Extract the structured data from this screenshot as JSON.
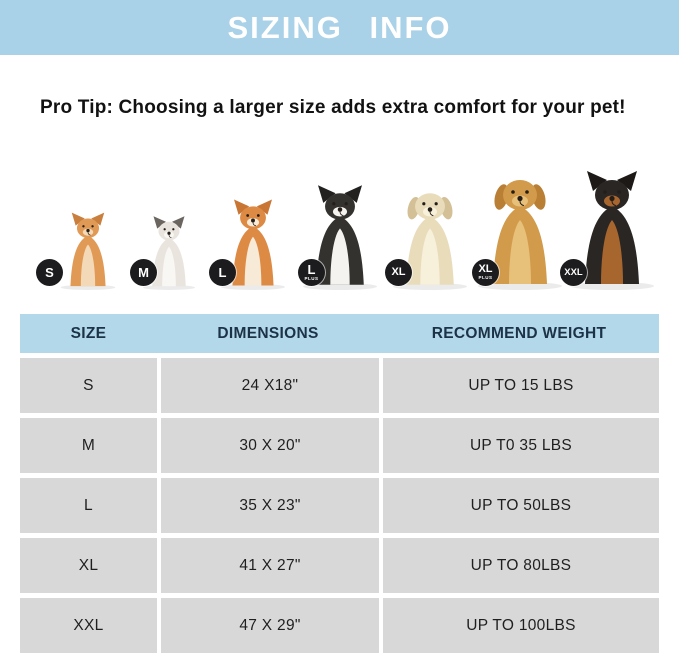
{
  "banner": {
    "title": "SIZING INFO",
    "bg_color": "#a9d1e7",
    "text_color": "#ffffff"
  },
  "pro_tip": "Pro Tip: Choosing a larger size adds extra comfort for your pet!",
  "dogs": [
    {
      "breed": "pomeranian",
      "badge": "S",
      "badge_sub": "",
      "body": "#e09a55",
      "accent": "#f3d9b8",
      "ear": "#c97f3e",
      "ears": "pointed"
    },
    {
      "breed": "french-bulldog",
      "badge": "M",
      "badge_sub": "",
      "body": "#e9e4dd",
      "accent": "#f9f7f3",
      "ear": "#6b6560",
      "ears": "pointed"
    },
    {
      "breed": "shiba-inu",
      "badge": "L",
      "badge_sub": "",
      "body": "#dd8a45",
      "accent": "#f7ead6",
      "ear": "#c97634",
      "ears": "pointed"
    },
    {
      "breed": "border-collie",
      "badge": "L",
      "badge_sub": "PLUS",
      "body": "#33322f",
      "accent": "#f5f3ef",
      "ear": "#222120",
      "ears": "pointed"
    },
    {
      "breed": "labrador",
      "badge": "XL",
      "badge_sub": "",
      "body": "#e9dcbb",
      "accent": "#f7f0da",
      "ear": "#d3c096",
      "ears": "floppy"
    },
    {
      "breed": "golden-retriever",
      "badge": "XL",
      "badge_sub": "PLUS",
      "body": "#d29a4b",
      "accent": "#e7c07a",
      "ear": "#b97f35",
      "ears": "floppy"
    },
    {
      "breed": "doberman",
      "badge": "XXL",
      "badge_sub": "",
      "body": "#2a2624",
      "accent": "#a8662f",
      "ear": "#1c1917",
      "ears": "pointed"
    }
  ],
  "table": {
    "header_bg": "#b2d8e9",
    "header_text_color": "#1c3247",
    "row_bg": "#d8d8d8",
    "headers": [
      "SIZE",
      "DIMENSIONS",
      "RECOMMEND WEIGHT"
    ],
    "rows": [
      {
        "size": "S",
        "dimensions": "24 X18\"",
        "weight": "UP TO 15 LBS"
      },
      {
        "size": "M",
        "dimensions": "30 X 20\"",
        "weight": "UP T0 35 LBS"
      },
      {
        "size": "L",
        "dimensions": "35 X 23\"",
        "weight": "UP TO 50LBS"
      },
      {
        "size": "XL",
        "dimensions": "41 X 27\"",
        "weight": "UP TO 80LBS"
      },
      {
        "size": "XXL",
        "dimensions": "47 X 29\"",
        "weight": "UP TO 100LBS"
      }
    ]
  }
}
